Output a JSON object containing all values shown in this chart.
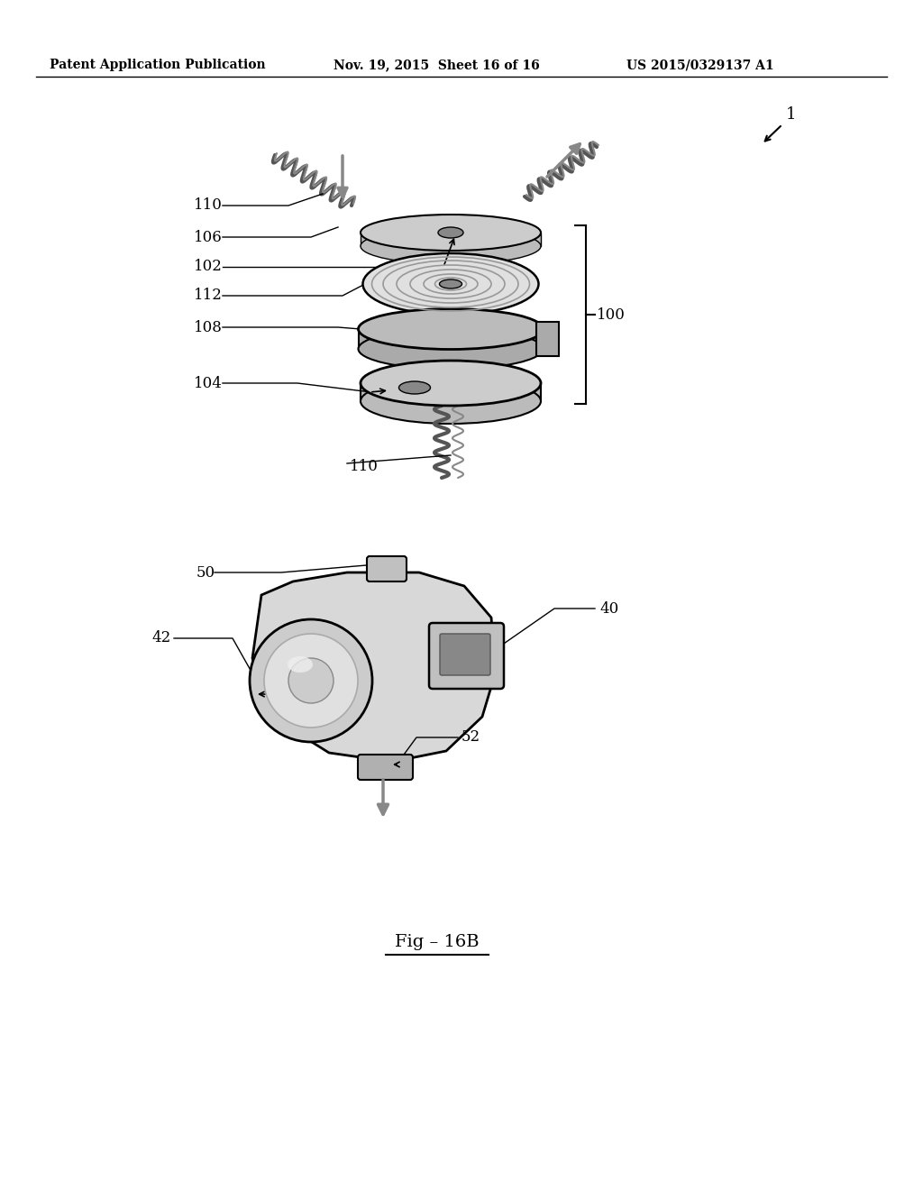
{
  "header_left": "Patent Application Publication",
  "header_center": "Nov. 19, 2015  Sheet 16 of 16",
  "header_right": "US 2015/0329137 A1",
  "figure_label": "Fig – 16B",
  "ref_1_label": "1",
  "bg": "#ffffff",
  "lc": "#000000",
  "gray_dark": "#555555",
  "gray_mid": "#888888",
  "gray_light": "#cccccc",
  "gray_vlight": "#e0e0e0",
  "label_110_top": "110",
  "label_106": "106",
  "label_102": "102",
  "label_112": "112",
  "label_108": "108",
  "label_100": "100",
  "label_104": "104",
  "label_110_bot": "110",
  "label_50": "50",
  "label_40": "40",
  "label_42": "42",
  "label_52": "52"
}
